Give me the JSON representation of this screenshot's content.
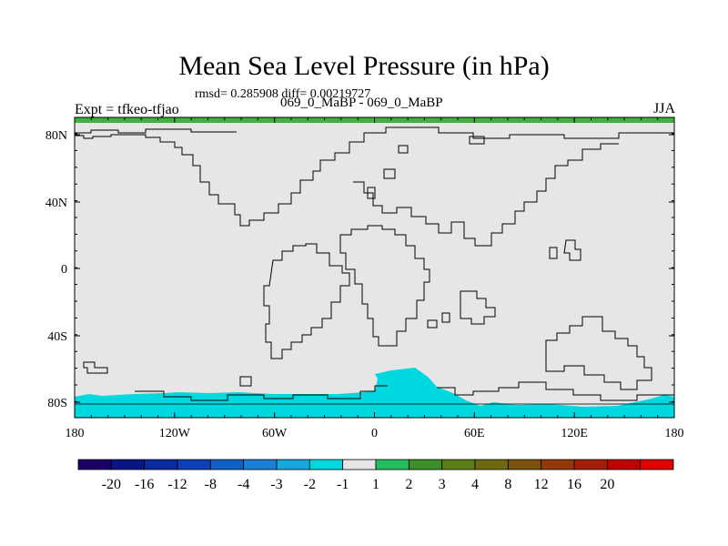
{
  "title": "Mean Sea Level Pressure (in hPa)",
  "stats": "rmsd= 0.285908 diff= 0.00219727",
  "left_label": "Expt = tfkeo-tfjao",
  "center_label": "069_0_MaBP - 069_0_MaBP",
  "right_label": "JJA",
  "map": {
    "lat_ticks": [
      "80N",
      "40N",
      "0",
      "40S",
      "80S"
    ],
    "lon_ticks": [
      "180",
      "120W",
      "60W",
      "0",
      "60E",
      "120E",
      "180"
    ],
    "background_color": "#e6e6e6",
    "anomaly_color": "#00d8e0",
    "top_band_color": "#40b040"
  },
  "colorbar": {
    "colors": [
      "#1a0066",
      "#0a1485",
      "#0a2aa0",
      "#0b40b8",
      "#1060c8",
      "#1a7fd8",
      "#16a6e0",
      "#00d8e0",
      "#e6e6e6",
      "#20c060",
      "#3d8f2a",
      "#5a7d14",
      "#6e6a10",
      "#7a5208",
      "#953808",
      "#a51e06",
      "#c00000",
      "#e00000"
    ],
    "labels": [
      "-20",
      "-16",
      "-12",
      "-8",
      "-4",
      "-3",
      "-2",
      "-1",
      "1",
      "2",
      "3",
      "4",
      "8",
      "12",
      "16",
      "20"
    ]
  }
}
